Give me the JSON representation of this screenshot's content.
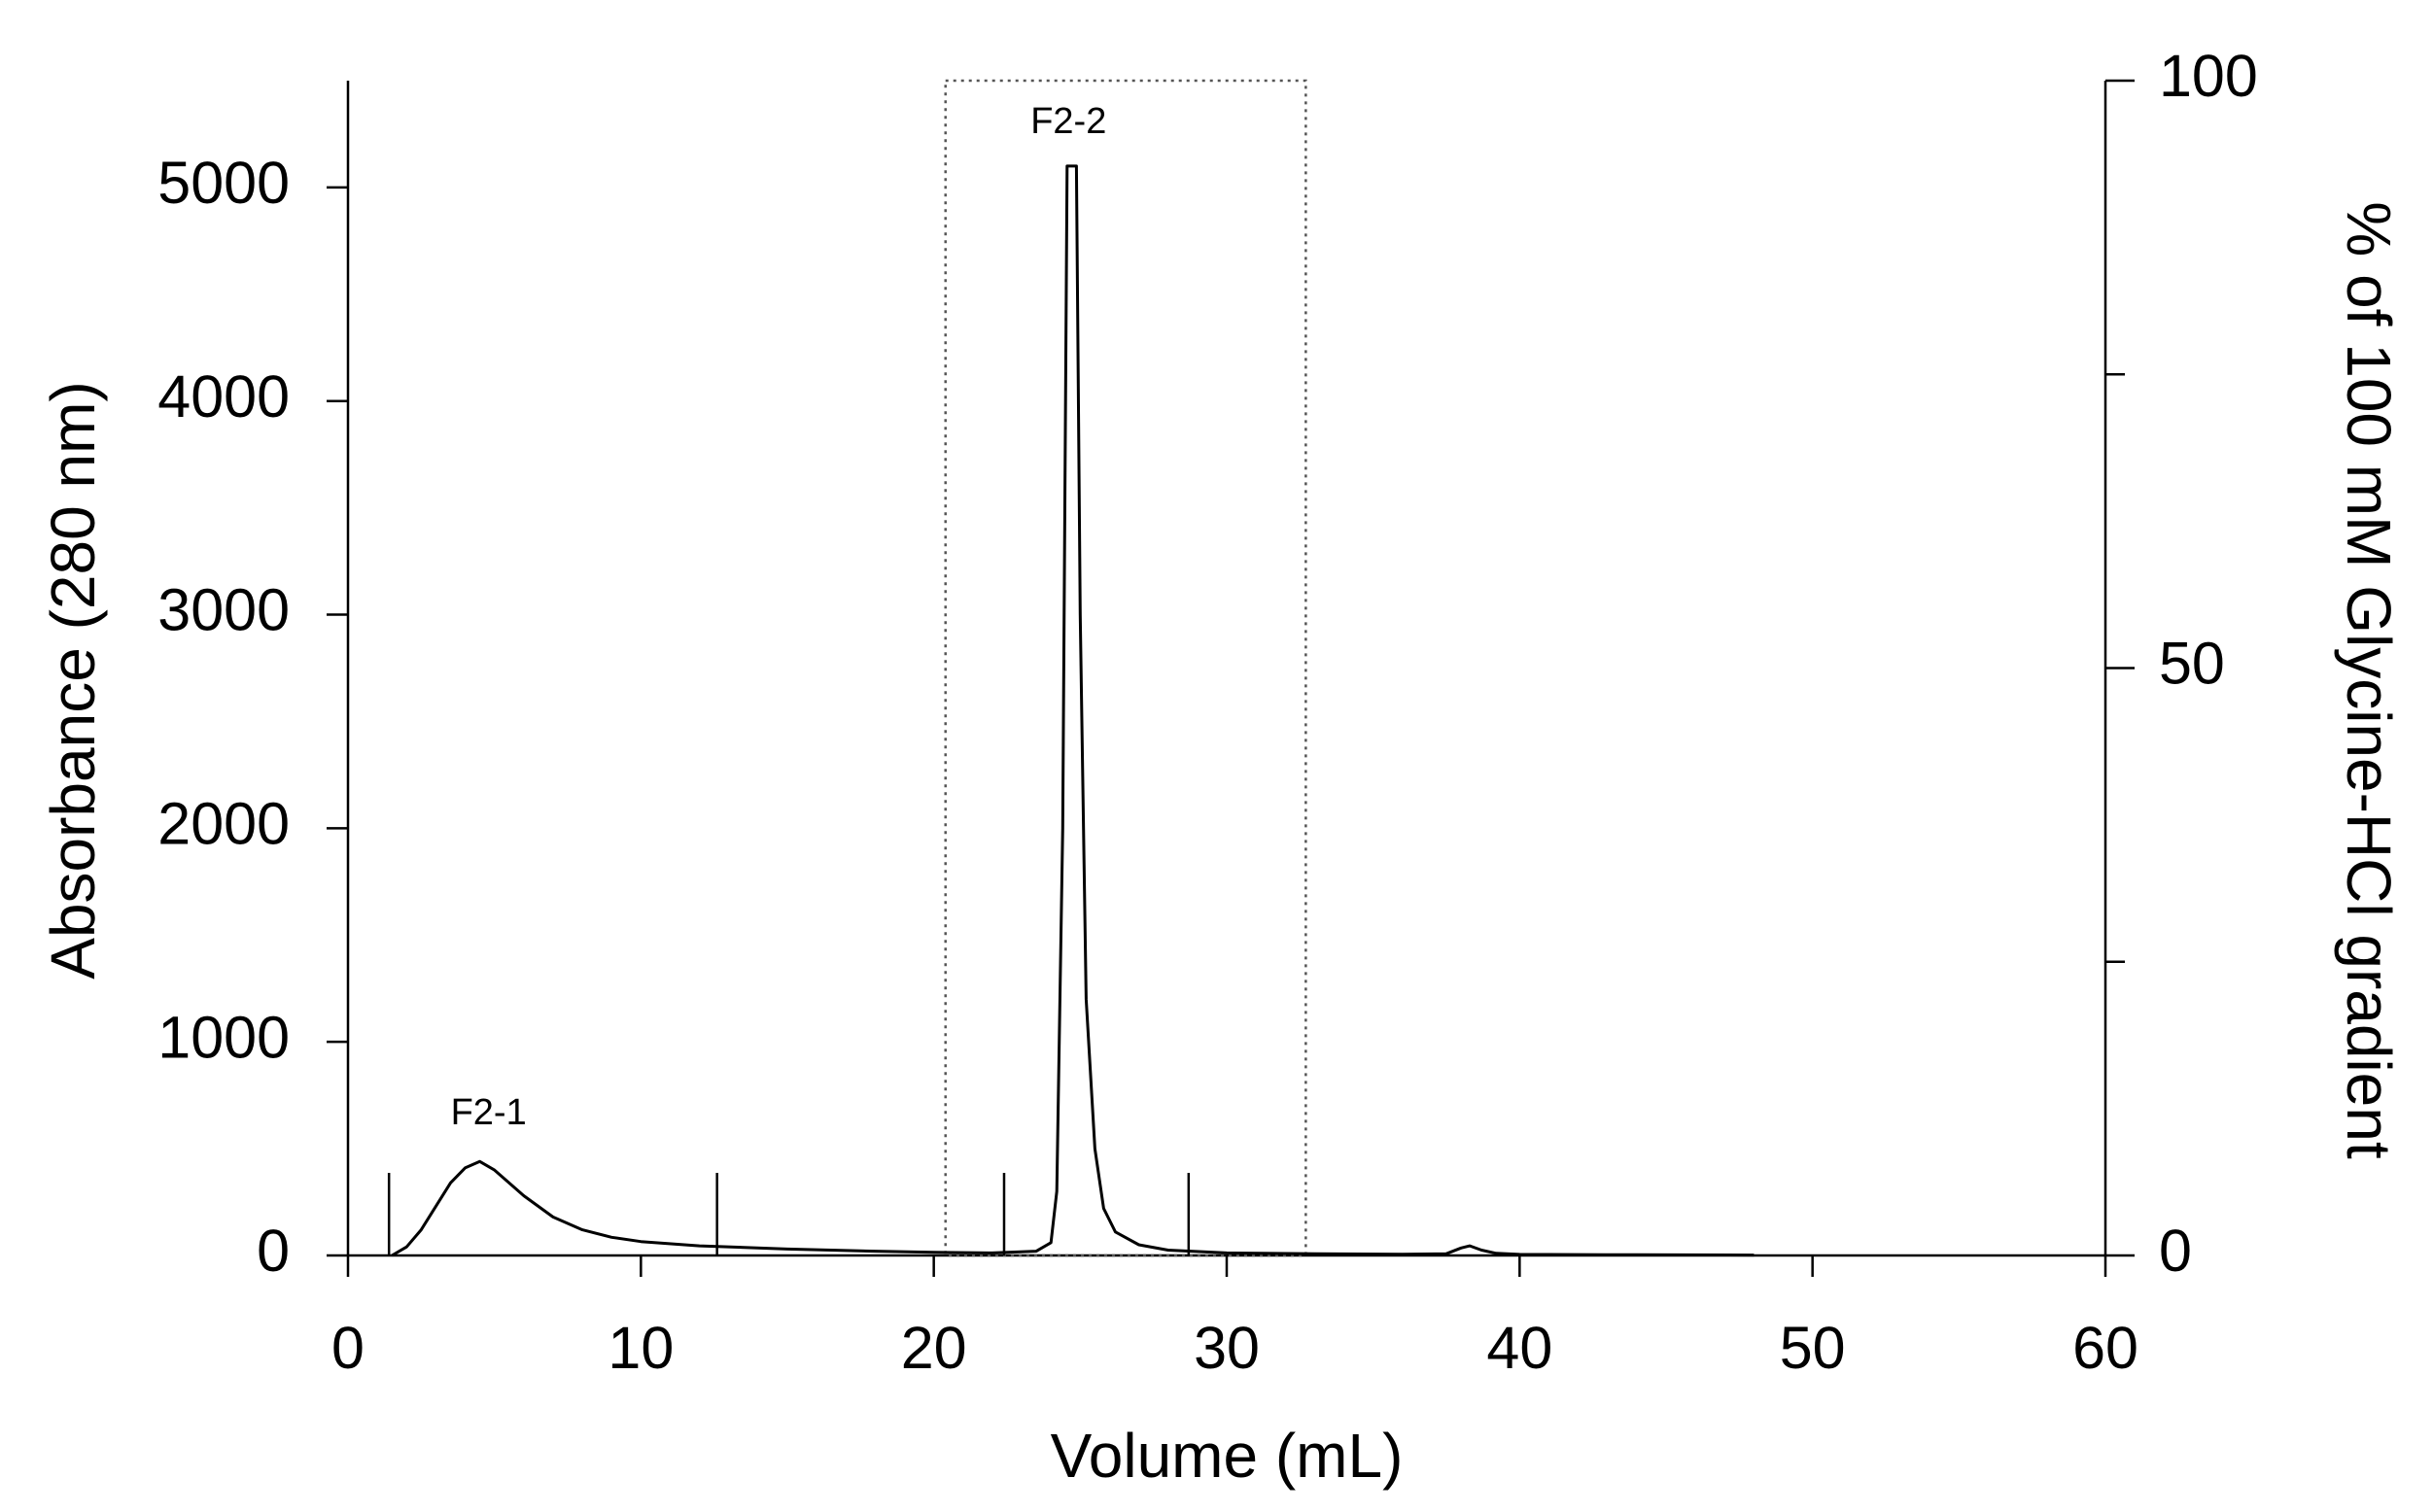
{
  "chart_data": {
    "type": "line",
    "x_label": "Volume (mL)",
    "y_label": "Absorbance (280 nm)",
    "y2_label": "% of 100 mM Glycine-HCl gradient",
    "xlim": [
      0,
      60
    ],
    "xticks": [
      0,
      10,
      20,
      30,
      40,
      50,
      60
    ],
    "ylim": [
      0,
      5500
    ],
    "yticks": [
      0,
      1000,
      2000,
      3000,
      4000,
      5000
    ],
    "y2lim": [
      0,
      100
    ],
    "y2ticks": [
      0,
      50,
      100
    ],
    "y2minor_ticks": [
      25,
      75
    ],
    "series": [
      {
        "name": "Absorbance",
        "color": "#000000",
        "x": [
          1.5,
          2.0,
          2.5,
          3.0,
          3.5,
          4.0,
          4.5,
          5.0,
          5.5,
          6.0,
          7.0,
          8.0,
          9.0,
          10.0,
          12.0,
          15.0,
          18.0,
          20.0,
          22.0,
          23.5,
          24.0,
          24.2,
          24.4,
          24.55,
          24.87,
          25.0,
          25.2,
          25.5,
          25.8,
          26.2,
          27.0,
          28.0,
          30.0,
          33.0,
          36.0,
          37.5,
          38.0,
          38.3,
          38.7,
          39.2,
          40.0,
          44.0,
          48.0
        ],
        "values": [
          0,
          40,
          120,
          230,
          340,
          410,
          440,
          400,
          340,
          280,
          180,
          120,
          85,
          65,
          45,
          30,
          20,
          15,
          12,
          20,
          60,
          300,
          2000,
          5100,
          5100,
          3000,
          1200,
          500,
          220,
          110,
          50,
          25,
          12,
          8,
          6,
          8,
          35,
          45,
          25,
          10,
          5,
          3,
          2
        ]
      }
    ],
    "fraction_marks": [
      1.4,
      12.6,
      22.4,
      28.7
    ],
    "highlight_xrange": [
      20.4,
      32.7
    ],
    "annotations": [
      {
        "text": "F2-1",
        "x": 4.8,
        "y": 660
      },
      {
        "text": "F2-2",
        "x": 24.6,
        "y": 5300
      }
    ]
  }
}
